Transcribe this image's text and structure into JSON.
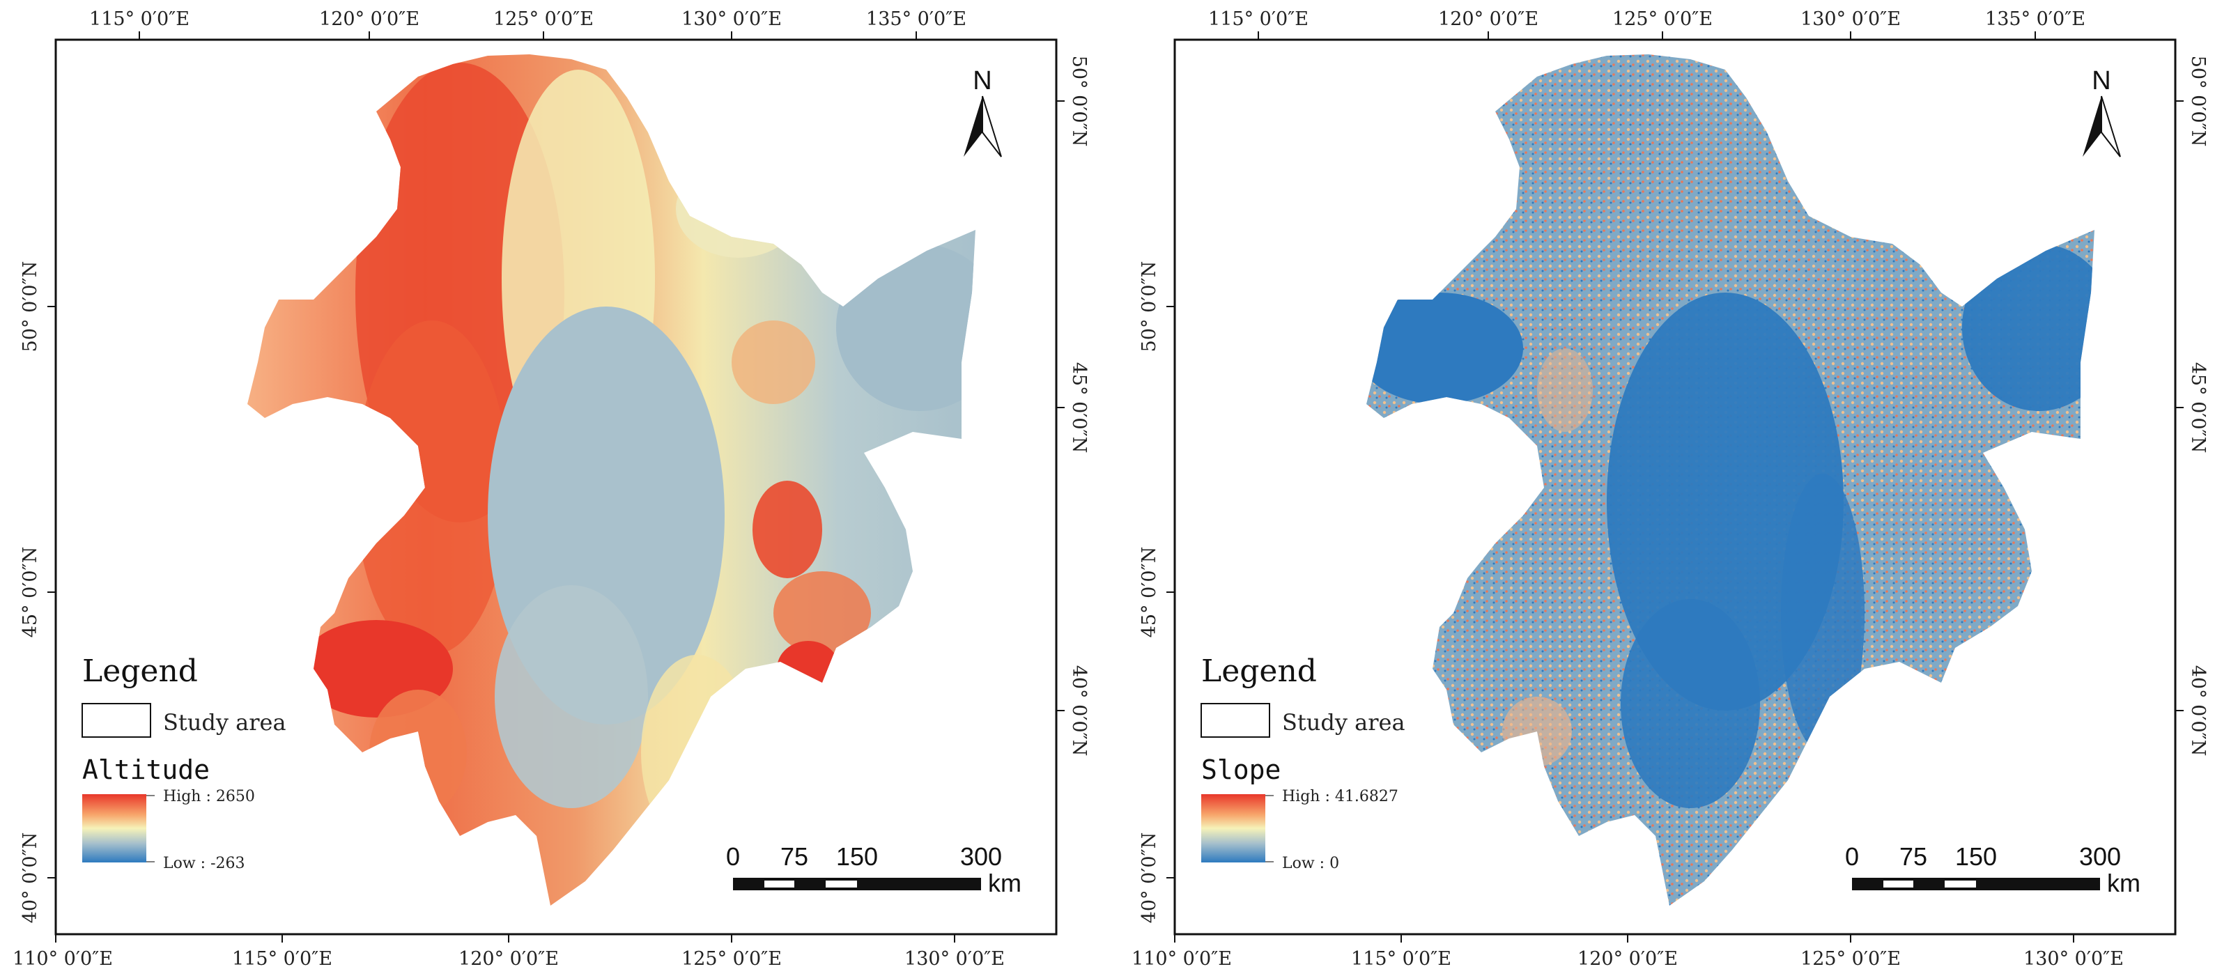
{
  "colors": {
    "high": "#e8372a",
    "mid_high": "#f7a56b",
    "mid": "#f6f2b8",
    "mid_low": "#a7c0cc",
    "low": "#2e7abf",
    "frame": "#111111"
  },
  "panels": [
    {
      "id": "altitude",
      "top_labels": [
        "115° 0′0″E",
        "120° 0′0″E",
        "125° 0′0″E",
        "130° 0′0″E",
        "135° 0′0″E"
      ],
      "bottom_labels": [
        "110° 0′0″E",
        "115° 0′0″E",
        "120° 0′0″E",
        "125° 0′0″E",
        "130° 0′0″E"
      ],
      "left_labels": [
        "50° 0′0″N",
        "45° 0′0″N",
        "40° 0′0″N"
      ],
      "right_labels": [
        "50° 0′0″N",
        "45° 0′0″N",
        "40° 0′0″N"
      ],
      "north": "N",
      "legend": {
        "title": "Legend",
        "study_area": "Study area",
        "layer": "Altitude",
        "high": "High : 2650",
        "low": "Low : -263"
      },
      "scale": {
        "labels": [
          "0",
          "75",
          "150",
          "300"
        ],
        "unit": "km"
      }
    },
    {
      "id": "slope",
      "top_labels": [
        "115° 0′0″E",
        "120° 0′0″E",
        "125° 0′0″E",
        "130° 0′0″E",
        "135° 0′0″E"
      ],
      "bottom_labels": [
        "110° 0′0″E",
        "115° 0′0″E",
        "120° 0′0″E",
        "125° 0′0″E",
        "130° 0′0″E"
      ],
      "left_labels": [
        "50° 0′0″N",
        "45° 0′0″N",
        "40° 0′0″N"
      ],
      "right_labels": [
        "50° 0′0″N",
        "45° 0′0″N",
        "40° 0′0″N"
      ],
      "north": "N",
      "legend": {
        "title": "Legend",
        "study_area": "Study area",
        "layer": "Slope",
        "high": "High : 41.6827",
        "low": "Low : 0"
      },
      "scale": {
        "labels": [
          "0",
          "75",
          "150",
          "300"
        ],
        "unit": "km"
      }
    }
  ]
}
